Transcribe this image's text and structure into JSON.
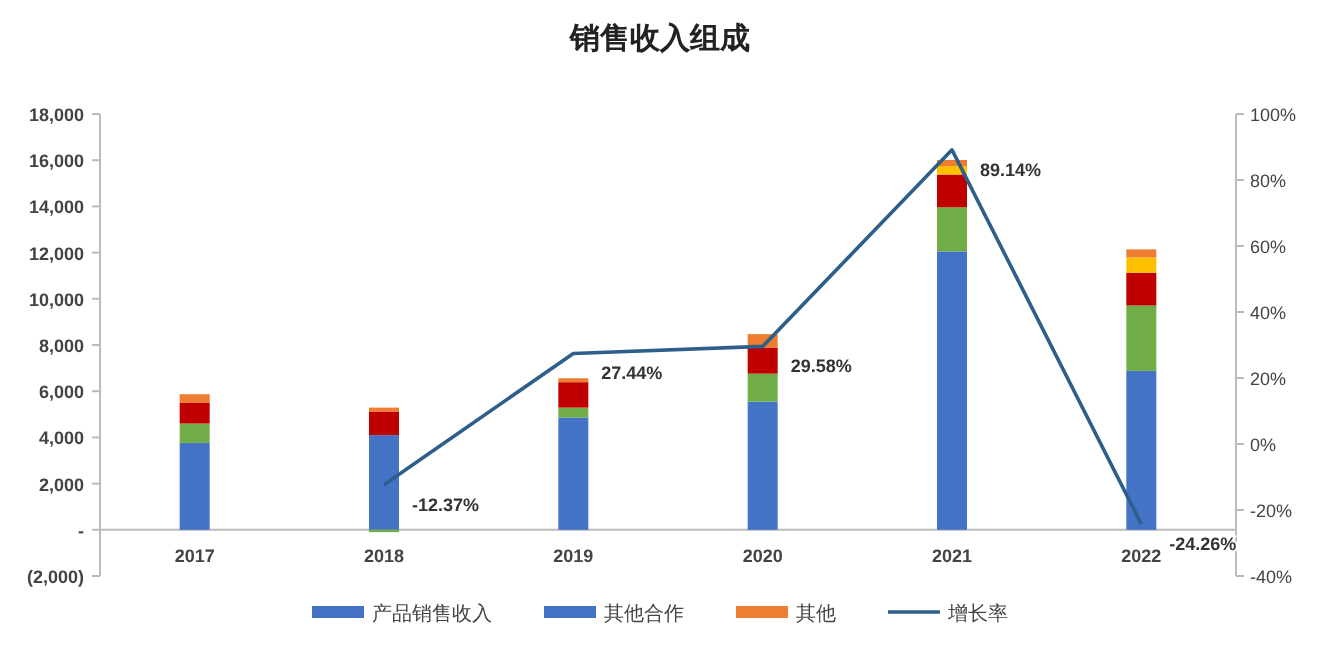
{
  "chart_data": {
    "type": "bar",
    "title": "销售收入组成",
    "stacked": true,
    "legend": "bottom",
    "grid": false,
    "categories": [
      "2017",
      "2018",
      "2019",
      "2020",
      "2021",
      "2022"
    ],
    "series": [
      {
        "name": "产品销售收入",
        "color": "#4472c4",
        "values": [
          3760,
          4100,
          4860,
          5550,
          12050,
          6880
        ]
      },
      {
        "color": "#70ad47",
        "values": [
          840,
          -100,
          430,
          1210,
          1910,
          2830
        ]
      },
      {
        "color": "#c00000",
        "values": [
          890,
          1020,
          1100,
          1130,
          1420,
          1420
        ]
      },
      {
        "color": "#ffc000",
        "values": [
          0,
          0,
          0,
          0,
          370,
          660
        ]
      },
      {
        "name": "其他合作",
        "color": "#4472c4",
        "values": [
          0,
          0,
          0,
          0,
          0,
          0
        ]
      },
      {
        "name": "其他",
        "color": "#ed7d31",
        "values": [
          380,
          170,
          170,
          580,
          260,
          350
        ]
      },
      {
        "name": "增长率",
        "type": "line",
        "axis": "y2",
        "color": "#2e5f8a",
        "marker": "none",
        "values": [
          null,
          -12.37,
          27.44,
          29.58,
          89.14,
          -24.26
        ],
        "value_labels": [
          null,
          "-12.37%",
          "27.44%",
          "29.58%",
          "89.14%",
          "-24.26%"
        ]
      }
    ],
    "ylim": [
      -2000,
      18000
    ],
    "yticks": [
      {
        "value": -2000,
        "label": "(2,000)"
      },
      {
        "value": 0,
        "label": "-"
      },
      {
        "value": 2000,
        "label": "2,000"
      },
      {
        "value": 4000,
        "label": "4,000"
      },
      {
        "value": 6000,
        "label": "6,000"
      },
      {
        "value": 8000,
        "label": "8,000"
      },
      {
        "value": 10000,
        "label": "10,000"
      },
      {
        "value": 12000,
        "label": "12,000"
      },
      {
        "value": 14000,
        "label": "14,000"
      },
      {
        "value": 16000,
        "label": "16,000"
      },
      {
        "value": 18000,
        "label": "18,000"
      }
    ],
    "y2lim": [
      -40,
      100
    ],
    "y2ticks": [
      {
        "value": -40,
        "label": "-40%"
      },
      {
        "value": -20,
        "label": "-20%"
      },
      {
        "value": 0,
        "label": "0%"
      },
      {
        "value": 20,
        "label": "20%"
      },
      {
        "value": 40,
        "label": "40%"
      },
      {
        "value": 60,
        "label": "60%"
      },
      {
        "value": 80,
        "label": "80%"
      },
      {
        "value": 100,
        "label": "100%"
      }
    ]
  }
}
